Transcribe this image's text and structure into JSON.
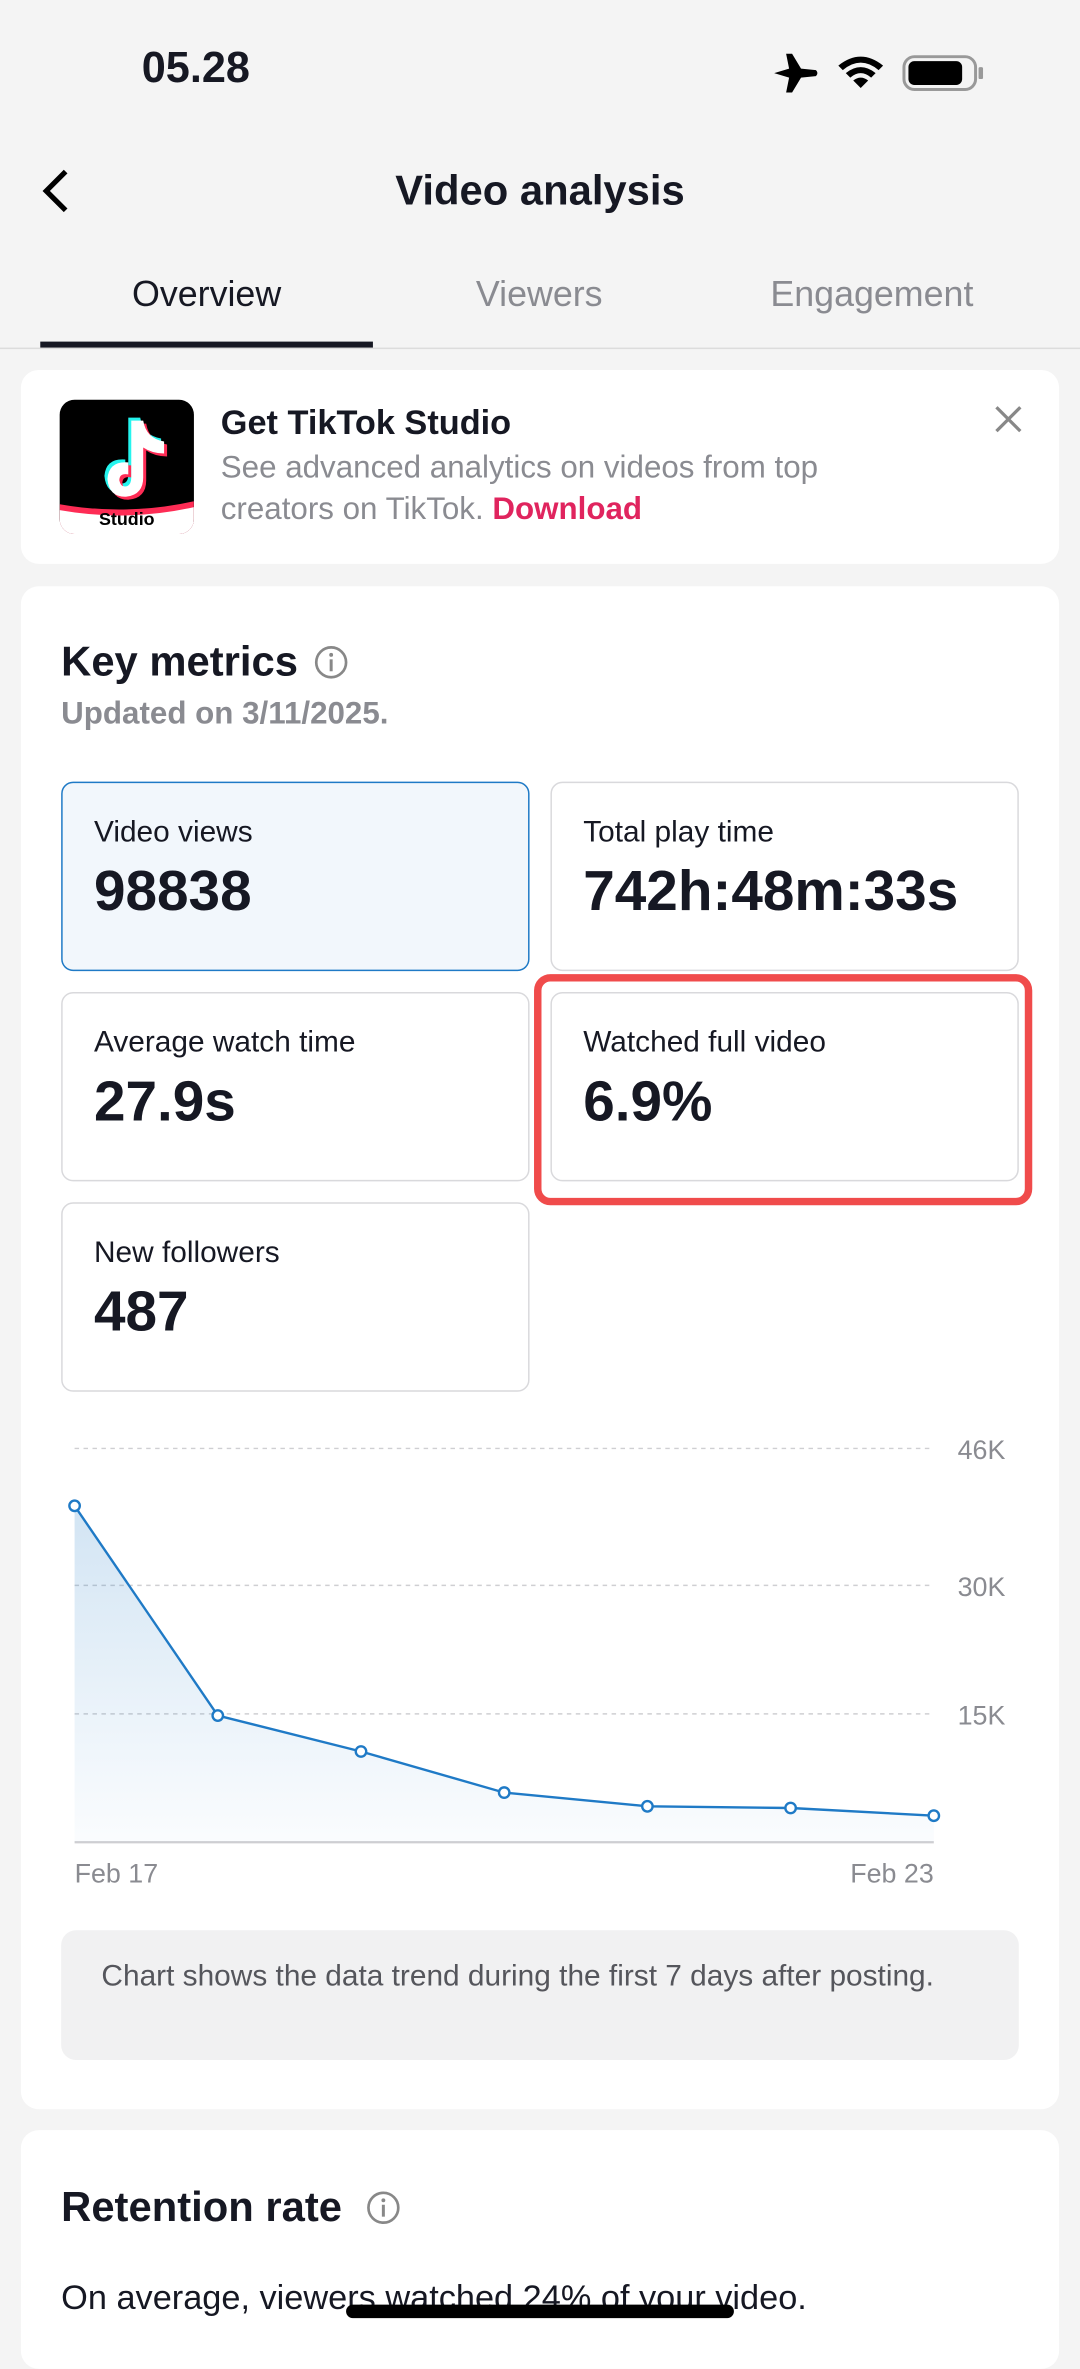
{
  "status_bar": {
    "time": "05.28"
  },
  "header": {
    "title": "Video analysis"
  },
  "tabs": [
    "Overview",
    "Viewers",
    "Engagement"
  ],
  "banner": {
    "icon_label": "Studio",
    "title": "Get TikTok Studio",
    "text": "See advanced analytics on videos from top creators on TikTok.",
    "link": "Download"
  },
  "key_metrics": {
    "title": "Key metrics",
    "updated": "Updated on 3/11/2025.",
    "metrics": [
      {
        "label": "Video views",
        "value": "98838"
      },
      {
        "label": "Total play time",
        "value": "742h:48m:33s"
      },
      {
        "label": "Average watch time",
        "value": "27.9s"
      },
      {
        "label": "Watched full video",
        "value": "6.9%"
      },
      {
        "label": "New followers",
        "value": "487"
      }
    ]
  },
  "chart_data": {
    "type": "line",
    "categories": [
      "Feb 17",
      null,
      null,
      null,
      null,
      null,
      "Feb 23"
    ],
    "series": [
      {
        "color": "#1f7ac6",
        "values": [
          39300,
          14800,
          10600,
          5800,
          4200,
          4000,
          3100
        ]
      }
    ],
    "ylim": [
      0,
      46000
    ],
    "yticks": [
      {
        "value": 15000,
        "label": "15K"
      },
      {
        "value": 30000,
        "label": "30K"
      },
      {
        "value": 46000,
        "label": "46K"
      }
    ],
    "grid": true
  },
  "note": "Chart shows the data trend during the first 7 days after posting.",
  "retention": {
    "title": "Retention rate",
    "text": "On average, viewers watched 24% of your video."
  }
}
